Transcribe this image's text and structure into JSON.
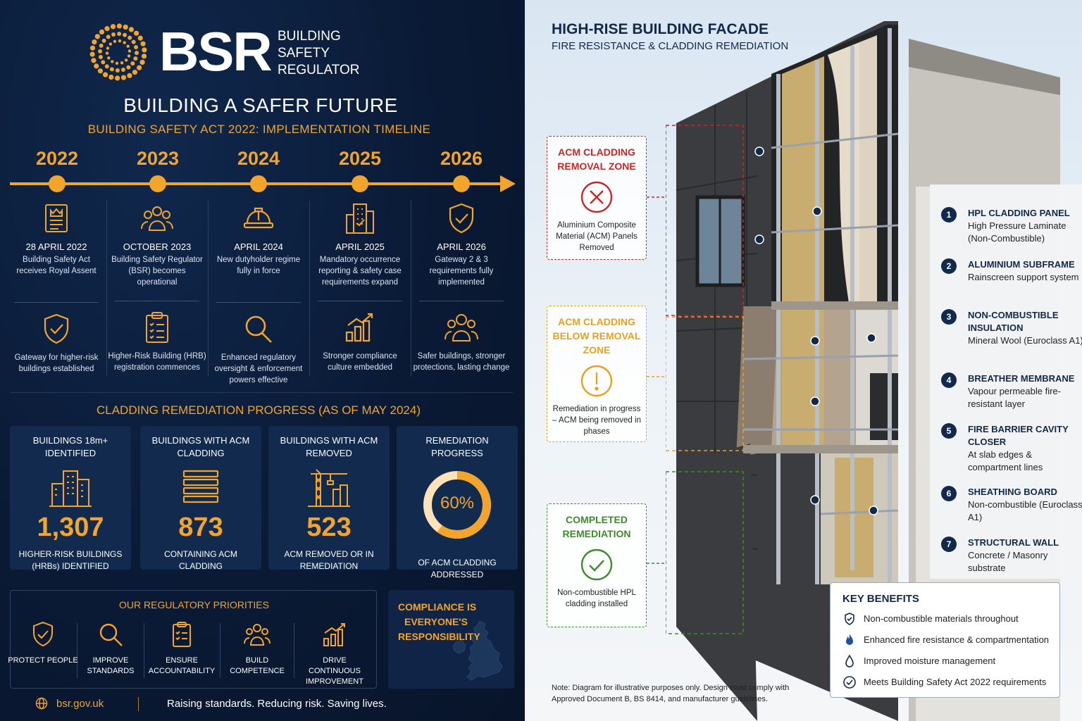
{
  "brand": {
    "name": "BSR",
    "lines": [
      "BUILDING",
      "SAFETY",
      "REGULATOR"
    ]
  },
  "hero": {
    "title": "BUILDING A SAFER FUTURE",
    "subtitle": "BUILDING SAFETY ACT 2022: IMPLEMENTATION TIMELINE"
  },
  "timeline": [
    {
      "year": "2022",
      "icon": "certificate-icon",
      "date": "28 APRIL 2022",
      "desc": "Building Safety Act receives Royal Assent",
      "icon2": "shield-check-icon",
      "desc2": "Gateway for higher-risk buildings established"
    },
    {
      "year": "2023",
      "icon": "people-icon",
      "date": "OCTOBER 2023",
      "desc": "Building Safety Regulator (BSR) becomes operational",
      "icon2": "clipboard-list-icon",
      "desc2": "Higher-Risk Building (HRB) registration commences"
    },
    {
      "year": "2024",
      "icon": "hard-hat-icon",
      "date": "APRIL 2024",
      "desc": "New dutyholder regime fully in force",
      "icon2": "magnifier-icon",
      "desc2": "Enhanced regulatory oversight & enforcement powers effective"
    },
    {
      "year": "2025",
      "icon": "building-icon",
      "date": "APRIL 2025",
      "desc": "Mandatory occurrence reporting & safety case requirements expand",
      "icon2": "growth-chart-icon",
      "desc2": "Stronger compliance culture embedded"
    },
    {
      "year": "2026",
      "icon": "shield-check-icon",
      "date": "APRIL 2026",
      "desc": "Gateway 2 & 3 requirements fully implemented",
      "icon2": "community-icon",
      "desc2": "Safer buildings, stronger protections, lasting change"
    }
  ],
  "cladding": {
    "title": "CLADDING REMEDIATION PROGRESS (AS OF MAY 2024)",
    "stats": [
      {
        "heading": "BUILDINGS 18m+ IDENTIFIED",
        "icon": "buildings-icon",
        "value": "1,307",
        "caption": "HIGHER-RISK BUILDINGS (HRBs) IDENTIFIED"
      },
      {
        "heading": "BUILDINGS WITH ACM CLADDING",
        "icon": "cladding-panels-icon",
        "value": "873",
        "caption": "CONTAINING ACM CLADDING"
      },
      {
        "heading": "BUILDINGS WITH ACM REMOVED",
        "icon": "crane-icon",
        "value": "523",
        "caption": "ACM REMOVED OR IN REMEDIATION"
      },
      {
        "heading": "REMEDIATION PROGRESS",
        "icon": "donut-progress",
        "value": "60%",
        "progress": 0.6,
        "caption": "OF ACM CLADDING ADDRESSED"
      }
    ]
  },
  "priorities": {
    "title": "OUR REGULATORY PRIORITIES",
    "items": [
      {
        "icon": "shield-check-icon",
        "label": "PROTECT PEOPLE"
      },
      {
        "icon": "magnifier-icon",
        "label": "IMPROVE STANDARDS"
      },
      {
        "icon": "clipboard-check-icon",
        "label": "ENSURE ACCOUNTABILITY"
      },
      {
        "icon": "people-icon",
        "label": "BUILD COMPETENCE"
      },
      {
        "icon": "growth-chart-icon",
        "label": "DRIVE CONTINUOUS IMPROVEMENT"
      }
    ]
  },
  "compliance": {
    "lines": [
      "COMPLIANCE IS",
      "EVERYONE'S",
      "RESPONSIBILITY"
    ]
  },
  "footer": {
    "url": "bsr.gov.uk",
    "tagline": "Raising standards. Reducing risk. Saving lives."
  },
  "facade": {
    "title": "HIGH-RISE BUILDING FACADE",
    "subtitle": "FIRE RESISTANCE & CLADDING REMEDIATION",
    "zones": [
      {
        "title": "ACM CLADDING REMOVAL ZONE",
        "icon": "cross-circle-icon",
        "color": "#c62828",
        "desc": "Aluminium Composite Material (ACM) Panels Removed"
      },
      {
        "title": "ACM CLADDING BELOW REMOVAL ZONE",
        "icon": "exclamation-circle-icon",
        "color": "#e6a21f",
        "desc": "Remediation in progress – ACM being removed in phases"
      },
      {
        "title": "COMPLETED REMEDIATION",
        "icon": "check-circle-icon",
        "color": "#3f8a2e",
        "desc": "Non-combustible HPL cladding installed"
      }
    ],
    "legend": [
      {
        "num": "1",
        "title": "HPL CLADDING PANEL",
        "desc": "High Pressure Laminate (Non-Combustible)"
      },
      {
        "num": "2",
        "title": "ALUMINIUM SUBFRAME",
        "desc": "Rainscreen support system"
      },
      {
        "num": "3",
        "title": "NON-COMBUSTIBLE INSULATION",
        "desc": "Mineral Wool (Euroclass A1)"
      },
      {
        "num": "4",
        "title": "BREATHER MEMBRANE",
        "desc": "Vapour permeable fire-resistant layer"
      },
      {
        "num": "5",
        "title": "FIRE BARRIER CAVITY CLOSER",
        "desc": "At slab edges & compartment lines"
      },
      {
        "num": "6",
        "title": "SHEATHING BOARD",
        "desc": "Non-combustible (Euroclass A1)"
      },
      {
        "num": "7",
        "title": "STRUCTURAL WALL",
        "desc": "Concrete / Masonry substrate"
      }
    ],
    "benefits": {
      "title": "KEY BENEFITS",
      "items": [
        {
          "icon": "shield-icon",
          "text": "Non-combustible materials throughout"
        },
        {
          "icon": "flame-icon",
          "text": "Enhanced fire resistance & compartmentation"
        },
        {
          "icon": "water-drop-icon",
          "text": "Improved moisture management"
        },
        {
          "icon": "check-badge-icon",
          "text": "Meets Building Safety Act 2022 requirements"
        }
      ]
    },
    "note": "Note: Diagram for illustrative purposes only. Design must comply with Approved Document B, BS 8414, and manufacturer guidelines."
  },
  "colors": {
    "accent": "#f2a52a",
    "navy": "#0b1a33",
    "removal": "#c62828",
    "progress": "#e6a21f",
    "complete": "#3f8a2e"
  }
}
